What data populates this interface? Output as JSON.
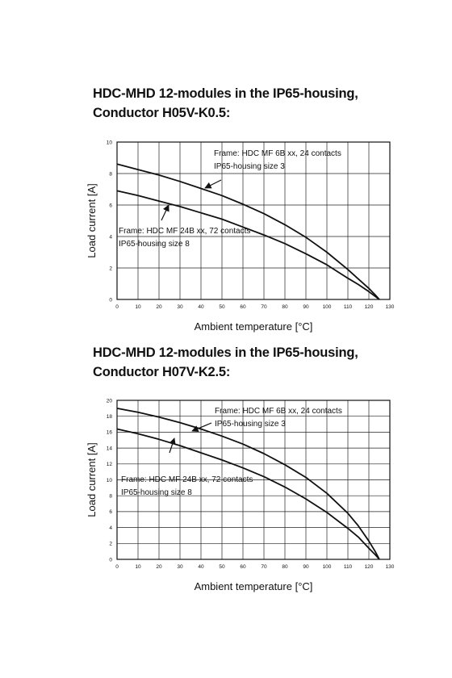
{
  "chart_data": [
    {
      "type": "line",
      "title": "HDC-MHD 12-modules in the IP65-housing,",
      "subtitle": "Conductor H05V-K0.5:",
      "xlabel": "Ambient temperature [°C]",
      "ylabel": "Load current [A]",
      "xlim": [
        0,
        130
      ],
      "ylim": [
        0,
        10
      ],
      "x_ticks": [
        0,
        10,
        20,
        30,
        40,
        50,
        60,
        70,
        80,
        90,
        100,
        110,
        120,
        130
      ],
      "y_ticks": [
        0,
        2,
        4,
        6,
        8,
        10
      ],
      "grid": true,
      "series": [
        {
          "x": [
            0,
            10,
            20,
            30,
            40,
            50,
            60,
            70,
            80,
            90,
            100,
            110,
            115,
            120,
            123,
            125
          ],
          "y": [
            8.6,
            8.25,
            7.9,
            7.5,
            7.05,
            6.6,
            6.05,
            5.45,
            4.75,
            3.95,
            3.0,
            1.9,
            1.3,
            0.7,
            0.3,
            0.0
          ]
        },
        {
          "x": [
            0,
            10,
            20,
            30,
            40,
            50,
            60,
            70,
            80,
            90,
            100,
            110,
            115,
            120,
            123,
            125
          ],
          "y": [
            6.9,
            6.6,
            6.25,
            5.9,
            5.5,
            5.1,
            4.6,
            4.1,
            3.55,
            2.9,
            2.2,
            1.35,
            0.95,
            0.5,
            0.2,
            0.0
          ]
        }
      ],
      "annotations": [
        {
          "lines": [
            "Frame: HDC MF 6B xx, 24 contacts",
            "IP65-housing size 3"
          ]
        },
        {
          "lines": [
            "Frame: HDC MF 24B xx, 72 contacts",
            "IP65-housing size 8"
          ]
        }
      ]
    },
    {
      "type": "line",
      "title": "HDC-MHD 12-modules in the IP65-housing,",
      "subtitle": "Conductor H07V-K2.5:",
      "xlabel": "Ambient temperature [°C]",
      "ylabel": "Load current [A]",
      "xlim": [
        0,
        130
      ],
      "ylim": [
        0,
        20
      ],
      "x_ticks": [
        0,
        10,
        20,
        30,
        40,
        50,
        60,
        70,
        80,
        90,
        100,
        110,
        120,
        130
      ],
      "y_ticks": [
        0,
        2,
        4,
        6,
        8,
        10,
        12,
        14,
        16,
        18,
        20
      ],
      "grid": true,
      "series": [
        {
          "x": [
            0,
            10,
            20,
            30,
            40,
            50,
            60,
            70,
            80,
            90,
            100,
            110,
            115,
            120,
            123,
            124,
            125
          ],
          "y": [
            19.0,
            18.5,
            17.9,
            17.2,
            16.4,
            15.5,
            14.5,
            13.3,
            11.9,
            10.3,
            8.3,
            5.8,
            4.2,
            2.3,
            1.0,
            0.5,
            0.0
          ]
        },
        {
          "x": [
            0,
            10,
            20,
            30,
            40,
            50,
            60,
            70,
            80,
            90,
            100,
            110,
            115,
            120,
            123,
            124,
            125
          ],
          "y": [
            16.4,
            15.8,
            15.1,
            14.3,
            13.4,
            12.5,
            11.5,
            10.4,
            9.1,
            7.6,
            5.9,
            3.9,
            2.8,
            1.4,
            0.6,
            0.3,
            0.0
          ]
        }
      ],
      "annotations": [
        {
          "lines": [
            "Frame: HDC MF 6B xx, 24 contacts",
            "IP65-housing size 3"
          ]
        },
        {
          "lines": [
            "Frame: HDC MF 24B xx, 72 contacts",
            "IP65-housing size 8"
          ]
        }
      ]
    }
  ]
}
